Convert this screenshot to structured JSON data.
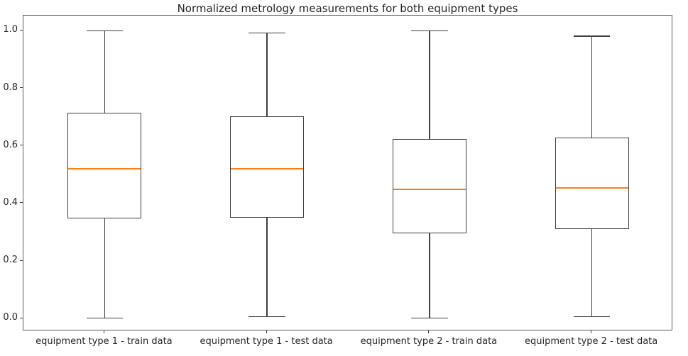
{
  "chart_data": {
    "type": "boxplot",
    "title": "Normalized metrology measurements for both equipment types",
    "xlabel": "",
    "ylabel": "",
    "categories": [
      "equipment type 1 - train data",
      "equipment type 1 - test data",
      "equipment type 2 - train data",
      "equipment type 2 - test data"
    ],
    "series": [
      {
        "name": "equipment type 1 - train data",
        "whisker_low": 0.002,
        "q1": 0.349,
        "median": 0.52,
        "q3": 0.715,
        "whisker_high": 1.0
      },
      {
        "name": "equipment type 1 - test data",
        "whisker_low": 0.007,
        "q1": 0.351,
        "median": 0.52,
        "q3": 0.702,
        "whisker_high": 0.992
      },
      {
        "name": "equipment type 2 - train data",
        "whisker_low": 0.001,
        "q1": 0.296,
        "median": 0.449,
        "q3": 0.624,
        "whisker_high": 1.0
      },
      {
        "name": "equipment type 2 - test data",
        "whisker_low": 0.006,
        "q1": 0.311,
        "median": 0.455,
        "q3": 0.63,
        "whisker_high": 0.982
      }
    ],
    "positions": [
      1,
      2,
      3,
      4
    ],
    "xlim": [
      0.5,
      4.5
    ],
    "ylim": [
      -0.044,
      1.053
    ],
    "yticks": [
      0.0,
      0.2,
      0.4,
      0.6,
      0.8,
      1.0
    ],
    "ytick_labels": [
      "0.0",
      "0.2",
      "0.4",
      "0.6",
      "0.8",
      "1.0"
    ],
    "box_width_units": 0.455,
    "cap_width_units": 0.226,
    "grid": false,
    "legend": null,
    "colors": {
      "box_edge": "#3f3f3f",
      "median": "#ff7f0e",
      "spine": "#5a5a5a",
      "text": "#262626",
      "background": "#ffffff"
    }
  }
}
